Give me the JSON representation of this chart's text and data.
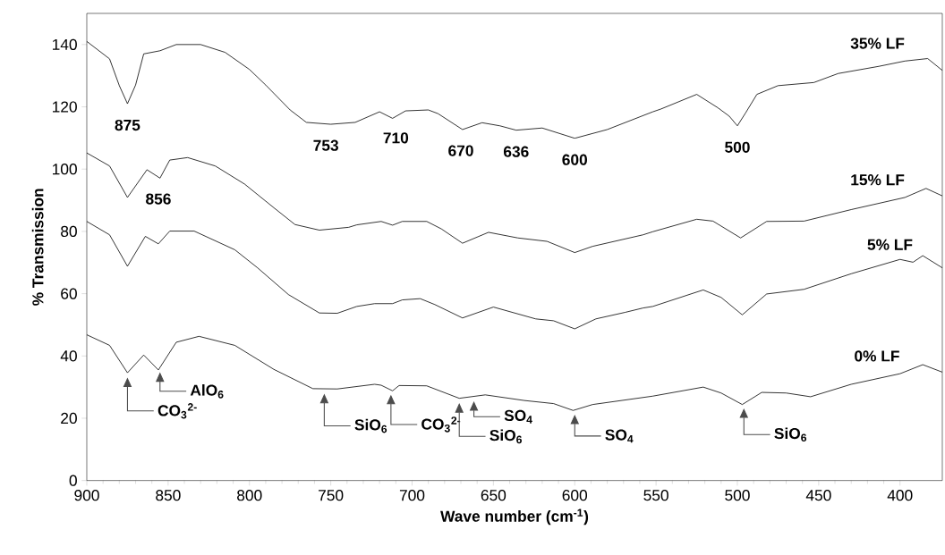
{
  "chart_data": {
    "type": "line",
    "xlabel": "Wave number (cm$^{-1}$)",
    "ylabel": "% Transmission",
    "xlim": [
      900,
      374
    ],
    "ylim": [
      0,
      150
    ],
    "xticks": [
      900,
      850,
      800,
      750,
      700,
      650,
      600,
      550,
      500,
      450,
      400
    ],
    "yticks": [
      0,
      20,
      40,
      60,
      80,
      100,
      120,
      140
    ],
    "series": [
      {
        "name": "35% LF",
        "color": "#000000",
        "x": [
          900,
          886,
          880,
          875,
          870,
          865,
          855,
          845,
          830,
          815,
          800,
          790,
          775,
          765,
          750,
          735,
          720,
          712,
          704,
          690,
          684,
          669,
          657,
          646,
          636,
          620,
          600,
          580,
          552,
          547,
          525,
          512,
          505,
          500,
          495,
          488,
          475,
          453,
          438,
          413,
          397,
          383,
          374
        ],
        "values": [
          141,
          135.4,
          126.8,
          121,
          127,
          137,
          138,
          140,
          140,
          137.5,
          132,
          127,
          119,
          115,
          114.4,
          115,
          118.4,
          116.3,
          118.7,
          119,
          117.8,
          112.7,
          114.9,
          113.9,
          112.5,
          113.2,
          109.9,
          112.7,
          118.4,
          119.3,
          124,
          119.7,
          117,
          113.9,
          118,
          124,
          126.8,
          127.8,
          130.7,
          133,
          134.7,
          135.5,
          131.7
        ]
      },
      {
        "name": "15% LF",
        "color": "#000000",
        "x": [
          900,
          886,
          875,
          863,
          855,
          849,
          838,
          821,
          803,
          785,
          772,
          757,
          739,
          734,
          719,
          712,
          706,
          691,
          682,
          669,
          653,
          635,
          617,
          600,
          589,
          558,
          552,
          525,
          515,
          498,
          482,
          459,
          430,
          397,
          384,
          374
        ],
        "values": [
          105.2,
          101,
          90.9,
          99.8,
          97.1,
          102.9,
          103.7,
          101,
          95.2,
          87.6,
          82.2,
          80.4,
          81.3,
          82.1,
          83.2,
          82,
          83.2,
          83.2,
          80.8,
          76.2,
          79.7,
          77.9,
          76.8,
          73.2,
          75.2,
          78.9,
          79.9,
          83.9,
          83.3,
          77.9,
          83.2,
          83.3,
          87,
          90.9,
          93.8,
          91.4
        ]
      },
      {
        "name": "5% LF",
        "color": "#000000",
        "x": [
          900,
          886,
          875,
          864,
          856,
          849,
          834,
          809,
          795,
          776,
          757,
          746,
          734,
          723,
          712,
          706,
          695,
          686,
          669,
          650,
          624,
          613,
          600,
          587,
          569,
          558,
          552,
          521,
          510,
          497,
          482,
          459,
          430,
          400,
          392,
          386,
          374
        ],
        "values": [
          83.2,
          78.9,
          68.8,
          78.4,
          76,
          80.1,
          80.1,
          74.1,
          68.3,
          59.7,
          53.8,
          53.7,
          55.9,
          56.8,
          56.8,
          58,
          58.4,
          56.5,
          52.2,
          55.7,
          51.9,
          51.3,
          48.7,
          51.9,
          54,
          55.4,
          55.9,
          61.2,
          58.8,
          53.2,
          59.9,
          61.4,
          66.4,
          71,
          70.1,
          72.2,
          68.3
        ]
      },
      {
        "name": "0% LF",
        "color": "#000000",
        "x": [
          900,
          886,
          875,
          865,
          856,
          845,
          831,
          809,
          785,
          761,
          746,
          723,
          719,
          712,
          708,
          691,
          671,
          655,
          631,
          613,
          601,
          589,
          552,
          521,
          510,
          497,
          485,
          470,
          455,
          430,
          400,
          386,
          374
        ],
        "values": [
          46.8,
          43.4,
          34.6,
          40.3,
          35.5,
          44.4,
          46.3,
          43.4,
          35.7,
          29.5,
          29.4,
          30.9,
          30.6,
          28.8,
          30.5,
          30.4,
          26.4,
          27.5,
          25.7,
          24.7,
          22.5,
          24.4,
          27.1,
          30,
          28.1,
          24.4,
          28.3,
          28.1,
          26.9,
          30.9,
          34.3,
          37.2,
          34.8
        ]
      }
    ],
    "annotations": [
      {
        "text": "875",
        "x": 875,
        "y": 121
      },
      {
        "text": "856",
        "x": 856,
        "y": 97.3
      },
      {
        "text": "753",
        "x": 753,
        "y": 114.5
      },
      {
        "text": "710",
        "x": 710,
        "y": 116.9
      },
      {
        "text": "670",
        "x": 670,
        "y": 112.8
      },
      {
        "text": "636",
        "x": 636,
        "y": 112.5
      },
      {
        "text": "600",
        "x": 600,
        "y": 109.9
      },
      {
        "text": "500",
        "x": 500,
        "y": 113.9
      },
      {
        "text": "CO$_{3}$$^{2-}$",
        "x": 875,
        "y": 34.6
      },
      {
        "text": "AlO$_{6}$",
        "x": 855,
        "y": 36.3
      },
      {
        "text": "SiO$_{6}$",
        "x": 754,
        "y": 29.4
      },
      {
        "text": "CO$_{3}$$^{2-}$",
        "x": 713,
        "y": 29.1
      },
      {
        "text": "SiO$_{6}$",
        "x": 671,
        "y": 26.4
      },
      {
        "text": "SO$_{4}$",
        "x": 662,
        "y": 27
      },
      {
        "text": "SO$_{4}$",
        "x": 600,
        "y": 22.7
      },
      {
        "text": "SiO$_{6}$",
        "x": 496,
        "y": 24.7
      }
    ]
  }
}
